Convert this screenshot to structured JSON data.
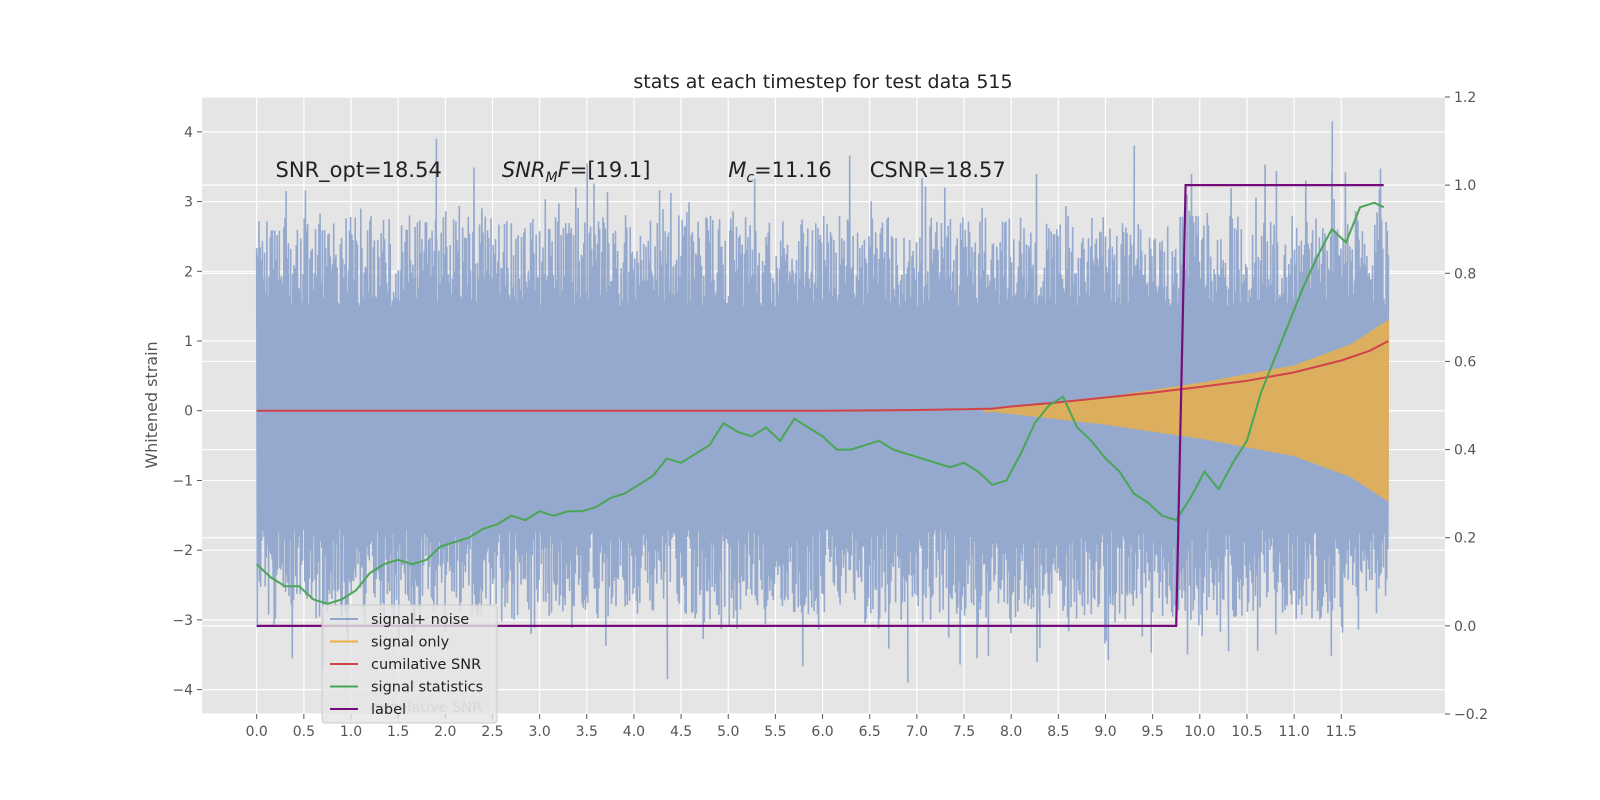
{
  "chart_data": {
    "type": "line",
    "title": "stats at each timestep for test data 515",
    "ylabel": "Whitened strain",
    "y2label": "",
    "xlim": [
      -0.58,
      12.6
    ],
    "ylim": [
      -4.35,
      4.5
    ],
    "y2lim": [
      -0.2,
      1.2
    ],
    "xticks": [
      "0.0",
      "0.5",
      "1.0",
      "1.5",
      "2.0",
      "2.5",
      "3.0",
      "3.5",
      "4.0",
      "4.5",
      "5.0",
      "5.5",
      "6.0",
      "6.5",
      "7.0",
      "7.5",
      "8.0",
      "8.5",
      "9.0",
      "9.5",
      "10.0",
      "10.5",
      "11.0",
      "11.5"
    ],
    "yticks": [
      "4",
      "3",
      "2",
      "1",
      "0",
      "−1",
      "−2",
      "−3",
      "−4"
    ],
    "y2ticks": [
      "1.2",
      "1.0",
      "0.8",
      "0.6",
      "0.4",
      "0.2",
      "0.0",
      "−0.2"
    ],
    "grid": true,
    "colors": {
      "background": "#e5e5e5",
      "grid": "#ffffff",
      "noise": "#8fa5cb",
      "signal": "#e9b04b",
      "snr": "#d1434b",
      "stats": "#4aa655",
      "label": "#760c7b"
    },
    "annotations": [
      {
        "id": "snr-opt",
        "text": "SNR_opt=18.54",
        "x": 0.2,
        "y": 3.35
      },
      {
        "id": "snr-mf",
        "text": "SNR",
        "sub": "M",
        "tail": "F=[19.1]",
        "x": 2.6,
        "y": 3.35
      },
      {
        "id": "mc",
        "text": "M",
        "sub": "c",
        "tail": "=11.16",
        "x": 5.0,
        "y": 3.35
      },
      {
        "id": "csnr",
        "text": "CSNR=18.57",
        "x": 6.5,
        "y": 3.35
      }
    ],
    "series": [
      {
        "name": "signal+ noise",
        "axis": "left",
        "kind": "noise",
        "x_range": [
          0,
          12.0
        ],
        "envelope": [
          [
            0,
            -1.7,
            1.5
          ],
          [
            12.0,
            -1.7,
            1.5
          ]
        ],
        "extremes": [
          [
            1.9,
            3.9
          ],
          [
            4.35,
            -3.85
          ],
          [
            6.0,
            1.15
          ],
          [
            6.0,
            -0.95
          ],
          [
            6.9,
            -3.9
          ],
          [
            8.3,
            -3.4
          ],
          [
            9.3,
            3.8
          ],
          [
            10.3,
            -3.45
          ],
          [
            11.4,
            4.15
          ],
          [
            11.5,
            -3.1
          ]
        ]
      },
      {
        "name": "signal only",
        "axis": "left",
        "kind": "chirp",
        "x_range": [
          7.7,
          12.0
        ],
        "amplitude": [
          [
            7.7,
            0.0
          ],
          [
            9.0,
            0.2
          ],
          [
            10.0,
            0.4
          ],
          [
            11.0,
            0.65
          ],
          [
            11.6,
            0.95
          ],
          [
            12.0,
            1.3
          ]
        ]
      },
      {
        "name": "cumilative SNR",
        "axis": "left",
        "x": [
          0,
          2,
          4,
          6,
          7,
          7.5,
          7.8,
          8.0,
          8.5,
          9.0,
          9.5,
          10.0,
          10.5,
          11.0,
          11.5,
          11.8,
          12.0
        ],
        "y": [
          0.0,
          0.0,
          0.0,
          0.0,
          0.01,
          0.02,
          0.03,
          0.06,
          0.12,
          0.19,
          0.26,
          0.34,
          0.43,
          0.55,
          0.72,
          0.86,
          1.0
        ]
      },
      {
        "name": "signal statistics",
        "axis": "right",
        "x": [
          0.0,
          0.15,
          0.3,
          0.45,
          0.6,
          0.75,
          0.9,
          1.05,
          1.2,
          1.35,
          1.5,
          1.65,
          1.8,
          1.95,
          2.1,
          2.25,
          2.4,
          2.55,
          2.7,
          2.85,
          3.0,
          3.15,
          3.3,
          3.45,
          3.6,
          3.75,
          3.9,
          4.05,
          4.2,
          4.35,
          4.5,
          4.65,
          4.8,
          4.95,
          5.1,
          5.25,
          5.4,
          5.55,
          5.7,
          5.85,
          6.0,
          6.15,
          6.3,
          6.45,
          6.6,
          6.75,
          6.9,
          7.05,
          7.2,
          7.35,
          7.5,
          7.65,
          7.8,
          7.95,
          8.1,
          8.25,
          8.4,
          8.55,
          8.7,
          8.85,
          9.0,
          9.15,
          9.3,
          9.45,
          9.6,
          9.75,
          9.9,
          10.05,
          10.2,
          10.35,
          10.5,
          10.65,
          10.8,
          10.95,
          11.1,
          11.25,
          11.4,
          11.55,
          11.7,
          11.85,
          11.95
        ],
        "y": [
          0.14,
          0.11,
          0.09,
          0.09,
          0.06,
          0.05,
          0.06,
          0.08,
          0.12,
          0.14,
          0.15,
          0.14,
          0.15,
          0.18,
          0.19,
          0.2,
          0.22,
          0.23,
          0.25,
          0.24,
          0.26,
          0.25,
          0.26,
          0.26,
          0.27,
          0.29,
          0.3,
          0.32,
          0.34,
          0.38,
          0.37,
          0.39,
          0.41,
          0.46,
          0.44,
          0.43,
          0.45,
          0.42,
          0.47,
          0.45,
          0.43,
          0.4,
          0.4,
          0.41,
          0.42,
          0.4,
          0.39,
          0.38,
          0.37,
          0.36,
          0.37,
          0.35,
          0.32,
          0.33,
          0.39,
          0.46,
          0.5,
          0.52,
          0.45,
          0.42,
          0.38,
          0.35,
          0.3,
          0.28,
          0.25,
          0.24,
          0.29,
          0.35,
          0.31,
          0.37,
          0.42,
          0.53,
          0.61,
          0.69,
          0.77,
          0.84,
          0.9,
          0.87,
          0.95,
          0.96,
          0.95
        ]
      },
      {
        "name": "label",
        "axis": "right",
        "x": [
          0.0,
          9.75,
          9.85,
          11.95
        ],
        "y": [
          0.0,
          0.0,
          1.0,
          1.0
        ]
      }
    ],
    "legend": {
      "placement": "lower-left",
      "ghost": "cumilative SNR"
    }
  }
}
